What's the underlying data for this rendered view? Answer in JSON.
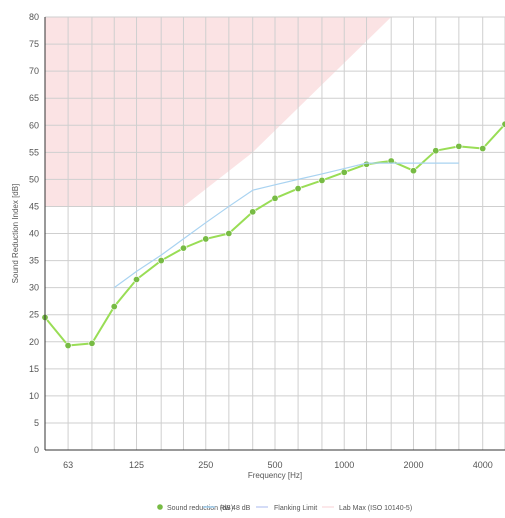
{
  "chart_data": {
    "type": "line",
    "xlabel": "Frequency [Hz]",
    "ylabel": "Sound Reduction Index [dB]",
    "x_scale": "log",
    "x_ticks": [
      63,
      125,
      250,
      500,
      1000,
      2000,
      4000
    ],
    "x_tick_labels": [
      "63",
      "125",
      "250",
      "500",
      "1000",
      "2000",
      "4000"
    ],
    "ylim": [
      0,
      80
    ],
    "y_ticks": [
      0,
      5,
      10,
      15,
      20,
      25,
      30,
      35,
      40,
      45,
      50,
      55,
      60,
      65,
      70,
      75,
      80
    ],
    "grid": true,
    "legend_position": "bottom",
    "series": [
      {
        "name": "Sound reduction (dB)",
        "kind": "line-markers",
        "color": "#99dd55",
        "marker_color": "#77bb44",
        "x": [
          50,
          63,
          80,
          100,
          125,
          160,
          200,
          250,
          315,
          400,
          500,
          630,
          800,
          1000,
          1250,
          1600,
          2000,
          2500,
          3150,
          4000,
          5000
        ],
        "y": [
          24.5,
          19.3,
          19.7,
          26.5,
          31.5,
          35,
          37.3,
          39,
          40,
          44,
          46.5,
          48.3,
          49.8,
          51.3,
          52.8,
          53.4,
          51.6,
          55.3,
          56.1,
          55.7,
          60.2
        ]
      },
      {
        "name": "Rw 48 dB",
        "kind": "line",
        "color": "#a9d3f1",
        "x": [
          100,
          125,
          160,
          200,
          250,
          315,
          400,
          500,
          630,
          800,
          1000,
          1250,
          1600,
          2000,
          2500,
          3150
        ],
        "y": [
          30,
          33,
          36,
          39,
          42,
          45,
          48,
          49,
          50,
          51,
          52,
          53,
          53,
          53,
          53,
          53
        ]
      },
      {
        "name": "Flanking Limit",
        "kind": "line",
        "color": "#c9d4f5",
        "x": [],
        "y": []
      },
      {
        "name": "Lab Max (ISO 10140-5)",
        "kind": "area-above",
        "color": "#fbe3e4",
        "x": [
          50,
          200,
          400,
          1600
        ],
        "y": [
          45,
          45,
          55,
          80
        ]
      }
    ]
  }
}
